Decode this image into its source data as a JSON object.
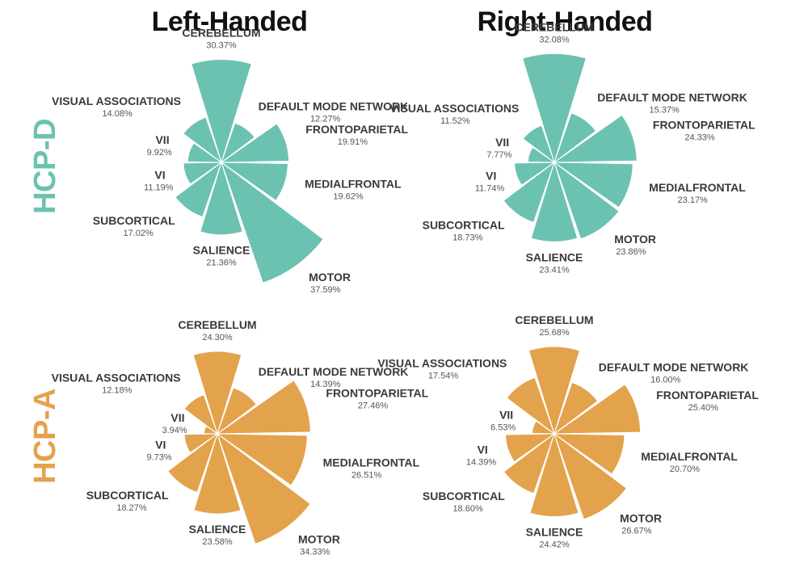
{
  "column_titles": [
    "Left-Handed",
    "Right-Handed"
  ],
  "row_titles": [
    "HCP-D",
    "HCP-A"
  ],
  "colors": {
    "HCP-D": "#6bc2b0",
    "HCP-A": "#e3a24c"
  },
  "chart_data": [
    {
      "type": "polar-bar",
      "group": "HCP-D",
      "panel": "Left-Handed",
      "series": [
        {
          "name": "CEREBELLUM",
          "value": 30.37,
          "label": "30.37%"
        },
        {
          "name": "DEFAULT MODE NETWORK",
          "value": 12.27,
          "label": "12.27%"
        },
        {
          "name": "FRONTOPARIETAL",
          "value": 19.91,
          "label": "19.91%"
        },
        {
          "name": "MEDIALFRONTAL",
          "value": 19.62,
          "label": "19.62%"
        },
        {
          "name": "MOTOR",
          "value": 37.59,
          "label": "37.59%"
        },
        {
          "name": "SALIENCE",
          "value": 21.36,
          "label": "21.36%"
        },
        {
          "name": "SUBCORTICAL",
          "value": 17.02,
          "label": "17.02%"
        },
        {
          "name": "VI",
          "value": 11.19,
          "label": "11.19%"
        },
        {
          "name": "VII",
          "value": 9.92,
          "label": "9.92%"
        },
        {
          "name": "VISUAL ASSOCIATIONS",
          "value": 14.08,
          "label": "14.08%"
        }
      ]
    },
    {
      "type": "polar-bar",
      "group": "HCP-D",
      "panel": "Right-Handed",
      "series": [
        {
          "name": "CEREBELLUM",
          "value": 32.08,
          "label": "32.08%"
        },
        {
          "name": "DEFAULT MODE NETWORK",
          "value": 15.37,
          "label": "15.37%"
        },
        {
          "name": "FRONTOPARIETAL",
          "value": 24.33,
          "label": "24.33%"
        },
        {
          "name": "MEDIALFRONTAL",
          "value": 23.17,
          "label": "23.17%"
        },
        {
          "name": "MOTOR",
          "value": 23.86,
          "label": "23.86%"
        },
        {
          "name": "SALIENCE",
          "value": 23.41,
          "label": "23.41%"
        },
        {
          "name": "SUBCORTICAL",
          "value": 18.73,
          "label": "18.73%"
        },
        {
          "name": "VI",
          "value": 11.74,
          "label": "11.74%"
        },
        {
          "name": "VII",
          "value": 7.77,
          "label": "7.77%"
        },
        {
          "name": "VISUAL ASSOCIATIONS",
          "value": 11.52,
          "label": "11.52%"
        }
      ]
    },
    {
      "type": "polar-bar",
      "group": "HCP-A",
      "panel": "Left-Handed",
      "series": [
        {
          "name": "CEREBELLUM",
          "value": 24.3,
          "label": "24.30%"
        },
        {
          "name": "DEFAULT MODE NETWORK",
          "value": 14.39,
          "label": "14.39%"
        },
        {
          "name": "FRONTOPARIETAL",
          "value": 27.46,
          "label": "27.46%"
        },
        {
          "name": "MEDIALFRONTAL",
          "value": 26.51,
          "label": "26.51%"
        },
        {
          "name": "MOTOR",
          "value": 34.33,
          "label": "34.33%"
        },
        {
          "name": "SALIENCE",
          "value": 23.58,
          "label": "23.58%"
        },
        {
          "name": "SUBCORTICAL",
          "value": 18.27,
          "label": "18.27%"
        },
        {
          "name": "VI",
          "value": 9.73,
          "label": "9.73%"
        },
        {
          "name": "VII",
          "value": 3.94,
          "label": "3.94%"
        },
        {
          "name": "VISUAL ASSOCIATIONS",
          "value": 12.18,
          "label": "12.18%"
        }
      ]
    },
    {
      "type": "polar-bar",
      "group": "HCP-A",
      "panel": "Right-Handed",
      "series": [
        {
          "name": "CEREBELLUM",
          "value": 25.68,
          "label": "25.68%"
        },
        {
          "name": "DEFAULT MODE NETWORK",
          "value": 16.0,
          "label": "16.00%"
        },
        {
          "name": "FRONTOPARIETAL",
          "value": 25.4,
          "label": "25.40%"
        },
        {
          "name": "MEDIALFRONTAL",
          "value": 20.7,
          "label": "20.70%"
        },
        {
          "name": "MOTOR",
          "value": 26.67,
          "label": "26.67%"
        },
        {
          "name": "SALIENCE",
          "value": 24.42,
          "label": "24.42%"
        },
        {
          "name": "SUBCORTICAL",
          "value": 18.6,
          "label": "18.60%"
        },
        {
          "name": "VI",
          "value": 14.39,
          "label": "14.39%"
        },
        {
          "name": "VII",
          "value": 6.53,
          "label": "6.53%"
        },
        {
          "name": "VISUAL ASSOCIATIONS",
          "value": 17.54,
          "label": "17.54%"
        }
      ]
    }
  ]
}
